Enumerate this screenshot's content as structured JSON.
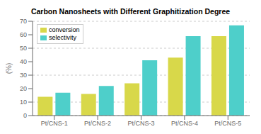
{
  "chart_data": {
    "type": "bar",
    "title": "Carbon Nanosheets with Different Graphitization Degree",
    "categories": [
      "Pt/CNS-1",
      "Pt/CNS-2",
      "Pt/CNS-3",
      "Pt/CNS-4",
      "Pt/CNS-5"
    ],
    "series": [
      {
        "name": "conversion",
        "color": "#d8d84a",
        "values": [
          14,
          16,
          24,
          43,
          59
        ]
      },
      {
        "name": "selectivity",
        "color": "#4ecfca",
        "values": [
          17,
          22,
          41,
          59,
          67
        ]
      }
    ],
    "ylabel": "(%)",
    "ylim": [
      0,
      70
    ],
    "yticks": [
      0,
      10,
      20,
      30,
      40,
      50,
      60,
      70
    ],
    "grid": true,
    "legend": "upper left"
  }
}
